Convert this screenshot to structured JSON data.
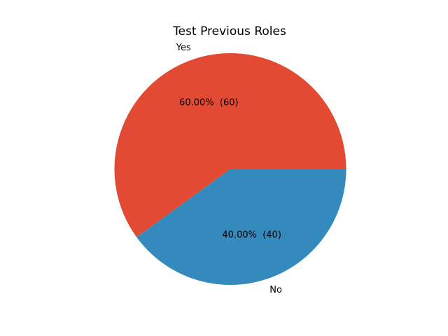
{
  "chart_data": {
    "type": "pie",
    "title": "Test Previous Roles",
    "slices": [
      {
        "label": "Yes",
        "value": 60,
        "pct_label": "60.00%  (60)",
        "color": "#E24A33"
      },
      {
        "label": "No",
        "value": 40,
        "pct_label": "40.00%  (40)",
        "color": "#348ABD"
      }
    ],
    "start_angle_deg": 0,
    "direction": "counterclockwise"
  }
}
